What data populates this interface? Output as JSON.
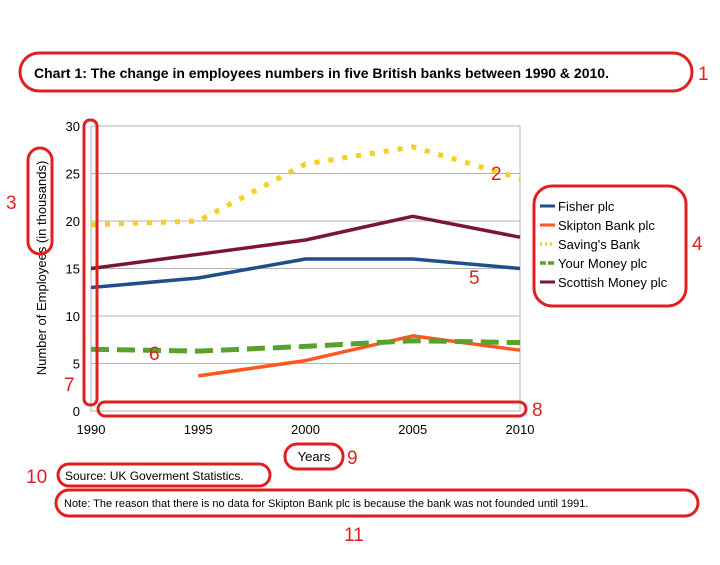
{
  "chart_data": {
    "type": "line",
    "title": "Chart 1: The change in employees numbers in five British banks between 1990 & 2010.",
    "xlabel": "Years",
    "ylabel": "Number of Employees (in thousands)",
    "x": [
      1990,
      1995,
      2000,
      2005,
      2010
    ],
    "x_ticks": [
      "1990",
      "1995",
      "2000",
      "2005",
      "2010"
    ],
    "y_ticks": [
      "0",
      "5",
      "10",
      "15",
      "20",
      "25",
      "30"
    ],
    "xlim": [
      1990,
      2010
    ],
    "ylim": [
      0,
      30
    ],
    "grid": "horizontal",
    "legend_position": "right",
    "series": [
      {
        "name": "Fisher plc",
        "color": "#1f4e8c",
        "style": "solid",
        "points": [
          [
            1990,
            13
          ],
          [
            1995,
            14
          ],
          [
            2000,
            16
          ],
          [
            2005,
            16
          ],
          [
            2010,
            15
          ]
        ]
      },
      {
        "name": "Skipton Bank plc",
        "color": "#ff5722",
        "style": "solid",
        "points": [
          [
            1995,
            3.7
          ],
          [
            2000,
            5.3
          ],
          [
            2005,
            7.9
          ],
          [
            2010,
            6.4
          ]
        ]
      },
      {
        "name": "Saving's Bank",
        "color": "#f5d020",
        "style": "dotted",
        "points": [
          [
            1990,
            19.6
          ],
          [
            1995,
            20
          ],
          [
            2000,
            26
          ],
          [
            2005,
            27.8
          ],
          [
            2010,
            24.5
          ]
        ]
      },
      {
        "name": "Your Money plc",
        "color": "#5aa02c",
        "style": "dashed",
        "points": [
          [
            1990,
            6.5
          ],
          [
            1995,
            6.3
          ],
          [
            2000,
            6.8
          ],
          [
            2005,
            7.4
          ],
          [
            2010,
            7.2
          ]
        ]
      },
      {
        "name": "Scottish Money plc",
        "color": "#7b1632",
        "style": "solid",
        "points": [
          [
            1990,
            15
          ],
          [
            1995,
            16.5
          ],
          [
            2000,
            18
          ],
          [
            2005,
            20.5
          ],
          [
            2010,
            18.3
          ]
        ]
      }
    ],
    "annotations": [
      {
        "id": "1",
        "target": "title"
      },
      {
        "id": "2",
        "target": "savings-line-end"
      },
      {
        "id": "3",
        "target": "y-axis-unit"
      },
      {
        "id": "4",
        "target": "legend"
      },
      {
        "id": "5",
        "target": "fisher-line"
      },
      {
        "id": "6",
        "target": "your-money-line"
      },
      {
        "id": "7",
        "target": "y-axis"
      },
      {
        "id": "8",
        "target": "x-axis"
      },
      {
        "id": "9",
        "target": "x-axis-label"
      },
      {
        "id": "10",
        "target": "source"
      },
      {
        "id": "11",
        "target": "note"
      }
    ],
    "annotation_color": "#e02020",
    "source": "Source: UK Goverment Statistics.",
    "note": "Note: The reason that there is no data for Skipton Bank plc is because the bank was not founded until 1991."
  }
}
